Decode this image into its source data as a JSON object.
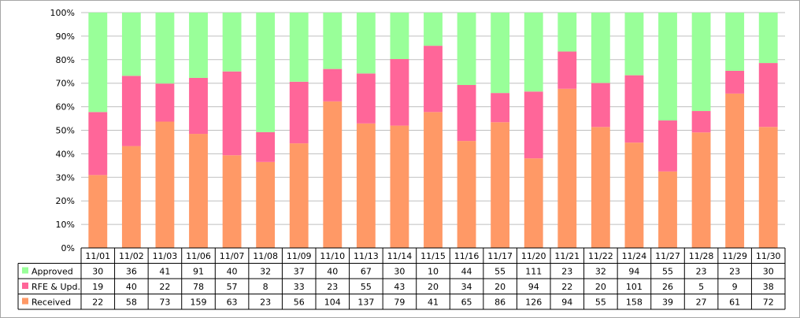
{
  "chart_data": {
    "type": "bar",
    "stacked": true,
    "normalized": true,
    "categories": [
      "11/01",
      "11/02",
      "11/03",
      "11/06",
      "11/07",
      "11/08",
      "11/09",
      "11/10",
      "11/13",
      "11/14",
      "11/15",
      "11/16",
      "11/17",
      "11/20",
      "11/21",
      "11/22",
      "11/24",
      "11/27",
      "11/28",
      "11/29",
      "11/30"
    ],
    "series": [
      {
        "name": "Approved",
        "color": "#99ff99",
        "values": [
          30,
          36,
          41,
          91,
          40,
          32,
          37,
          40,
          67,
          30,
          10,
          44,
          55,
          111,
          23,
          32,
          94,
          55,
          23,
          23,
          30
        ]
      },
      {
        "name": "RFE & Upd.",
        "color": "#ff6699",
        "values": [
          19,
          40,
          22,
          78,
          57,
          8,
          33,
          23,
          55,
          43,
          20,
          34,
          20,
          94,
          22,
          20,
          101,
          26,
          5,
          9,
          38
        ]
      },
      {
        "name": "Received",
        "color": "#ff9966",
        "values": [
          22,
          58,
          73,
          159,
          63,
          23,
          56,
          104,
          137,
          79,
          41,
          65,
          86,
          126,
          94,
          55,
          158,
          39,
          27,
          61,
          72
        ]
      }
    ],
    "yticks": [
      "0%",
      "10%",
      "20%",
      "30%",
      "40%",
      "50%",
      "60%",
      "70%",
      "80%",
      "90%",
      "100%"
    ],
    "ylim": [
      0,
      100
    ],
    "grid": true,
    "legend": "data-table-left",
    "data_table": true
  }
}
